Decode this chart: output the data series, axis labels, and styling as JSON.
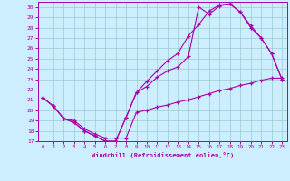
{
  "xlabel": "Windchill (Refroidissement éolien,°C)",
  "bg_color": "#cceeff",
  "line_color": "#aa00aa",
  "grid_color": "#99cccc",
  "xlim": [
    -0.5,
    23.5
  ],
  "ylim": [
    17,
    30.5
  ],
  "xticks": [
    0,
    1,
    2,
    3,
    4,
    5,
    6,
    7,
    8,
    9,
    10,
    11,
    12,
    13,
    14,
    15,
    16,
    17,
    18,
    19,
    20,
    21,
    22,
    23
  ],
  "yticks": [
    17,
    18,
    19,
    20,
    21,
    22,
    23,
    24,
    25,
    26,
    27,
    28,
    29,
    30
  ],
  "line1_x": [
    0,
    1,
    2,
    3,
    4,
    5,
    6,
    7,
    8,
    9,
    10,
    11,
    12,
    13,
    14,
    15,
    16,
    17,
    18,
    19,
    20,
    21,
    22,
    23
  ],
  "line1_y": [
    21.2,
    20.4,
    19.2,
    18.8,
    18.0,
    17.5,
    17.0,
    17.0,
    19.3,
    21.7,
    22.8,
    23.8,
    24.8,
    25.5,
    27.2,
    28.3,
    29.6,
    30.2,
    30.3,
    29.5,
    28.2,
    27.0,
    25.5,
    23.0
  ],
  "line2_x": [
    0,
    1,
    2,
    3,
    4,
    5,
    6,
    7,
    8,
    9,
    10,
    11,
    12,
    13,
    14,
    15,
    16,
    17,
    18,
    19,
    20,
    21,
    22,
    23
  ],
  "line2_y": [
    21.2,
    20.4,
    19.2,
    18.8,
    18.0,
    17.5,
    17.0,
    17.0,
    19.3,
    21.7,
    22.3,
    23.2,
    23.8,
    24.2,
    25.2,
    30.0,
    29.3,
    30.1,
    30.3,
    29.5,
    28.0,
    27.0,
    25.5,
    23.0
  ],
  "line3_x": [
    0,
    1,
    2,
    3,
    4,
    5,
    6,
    7,
    8,
    9,
    10,
    11,
    12,
    13,
    14,
    15,
    16,
    17,
    18,
    19,
    20,
    21,
    22,
    23
  ],
  "line3_y": [
    21.2,
    20.4,
    19.2,
    19.0,
    18.2,
    17.7,
    17.3,
    17.3,
    17.3,
    19.8,
    20.0,
    20.3,
    20.5,
    20.8,
    21.0,
    21.3,
    21.6,
    21.9,
    22.1,
    22.4,
    22.6,
    22.9,
    23.1,
    23.1
  ]
}
